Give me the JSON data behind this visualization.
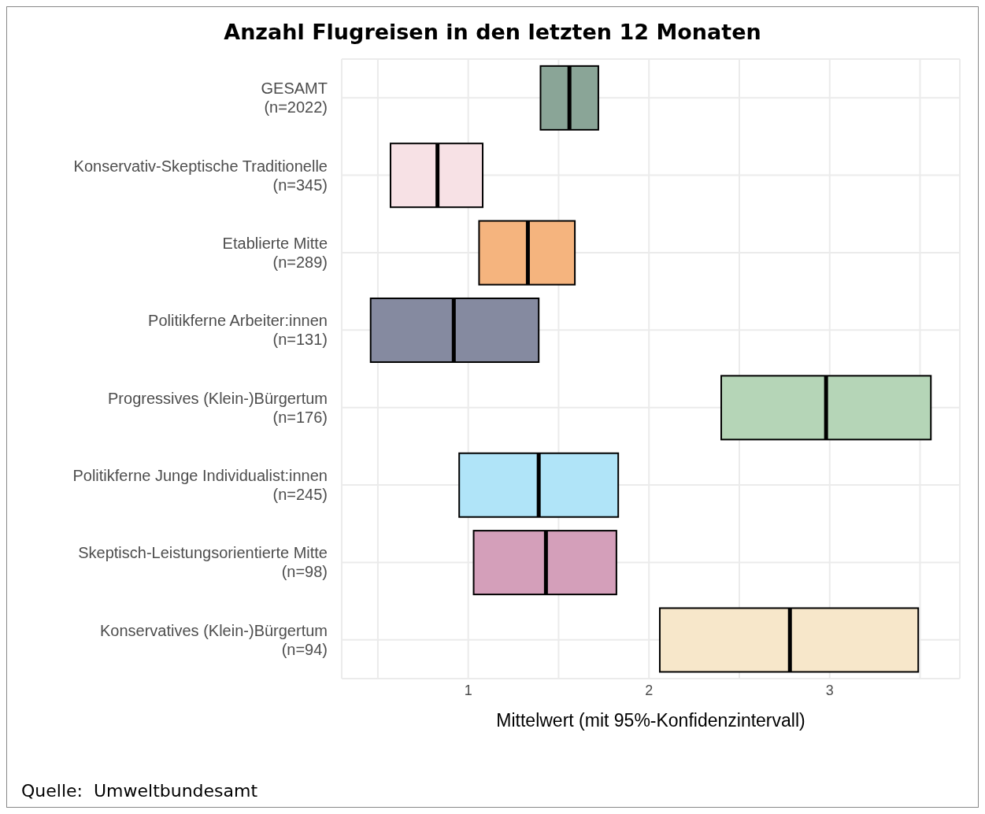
{
  "chart_data": {
    "type": "box",
    "orientation": "horizontal",
    "title": "Anzahl Flugreisen in den letzten 12 Monaten",
    "xlabel": "Mittelwert (mit 95%-Konfidenzintervall)",
    "categories": [
      "GESAMT\n(n=2022)",
      "Konservativ-Skeptische Traditionelle\n(n=345)",
      "Etablierte Mitte\n(n=289)",
      "Politikferne Arbeiter:innen\n(n=131)",
      "Progressives (Klein-)Bürgertum\n(n=176)",
      "Politikferne Junge Individualist:innen\n(n=245)",
      "Skeptisch-Leistungsorientierte Mitte\n(n=98)",
      "Konservatives (Klein-)Bürgertum\n(n=94)"
    ],
    "boxes": [
      {
        "low": 1.4,
        "q1": 1.4,
        "median": 1.56,
        "q3": 1.72,
        "high": 1.72
      },
      {
        "low": 0.57,
        "q1": 0.57,
        "median": 0.83,
        "q3": 1.08,
        "high": 1.08
      },
      {
        "low": 1.06,
        "q1": 1.06,
        "median": 1.33,
        "q3": 1.59,
        "high": 1.59
      },
      {
        "low": 0.46,
        "q1": 0.46,
        "median": 0.92,
        "q3": 1.39,
        "high": 1.39
      },
      {
        "low": 2.4,
        "q1": 2.4,
        "median": 2.98,
        "q3": 3.56,
        "high": 3.56
      },
      {
        "low": 0.95,
        "q1": 0.95,
        "median": 1.39,
        "q3": 1.83,
        "high": 1.83
      },
      {
        "low": 1.03,
        "q1": 1.03,
        "median": 1.43,
        "q3": 1.82,
        "high": 1.82
      },
      {
        "low": 2.06,
        "q1": 2.06,
        "median": 2.78,
        "q3": 3.49,
        "high": 3.49
      }
    ],
    "colors": [
      "#8aa597",
      "#f7e1e5",
      "#f5b47e",
      "#858aa0",
      "#b5d5b7",
      "#b0e4f8",
      "#d49fba",
      "#f7e7ca"
    ],
    "xlim": [
      0.3,
      3.72
    ],
    "xticks": [
      {
        "value": 0.5,
        "label": null
      },
      1,
      {
        "value": 1.5,
        "label": null
      },
      2,
      {
        "value": 2.5,
        "label": null
      },
      3,
      {
        "value": 3.5,
        "label": null
      }
    ],
    "grid": true,
    "annotations": [
      "Quelle:  Umweltbundesamt"
    ]
  }
}
